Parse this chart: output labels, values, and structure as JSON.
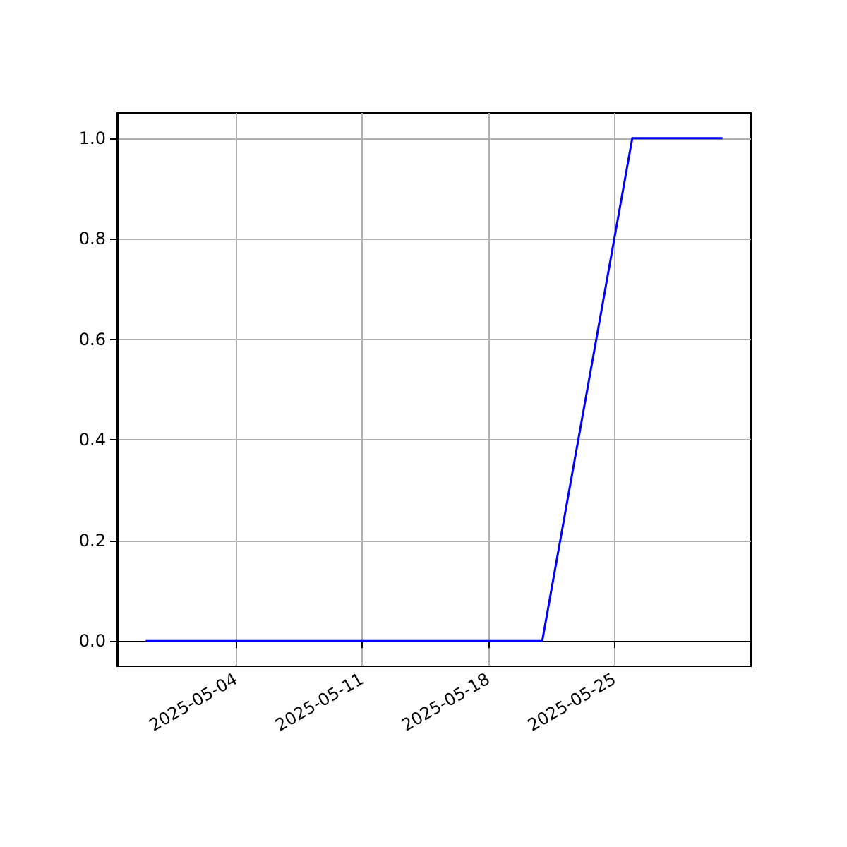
{
  "chart_data": {
    "type": "line",
    "x": [
      "2025-04-29",
      "2025-05-21",
      "2025-05-26",
      "2025-05-31"
    ],
    "series": [
      {
        "color": "#0000ff",
        "values": [
          0,
          0,
          1,
          1
        ]
      }
    ],
    "xlim": [
      "2025-04-27T10:00",
      "2025-06-01T14:00"
    ],
    "xticks": [
      "2025-05-04",
      "2025-05-11",
      "2025-05-18",
      "2025-05-25"
    ],
    "ylim": [
      -0.05,
      1.05
    ],
    "yticks": [
      {
        "value": 0,
        "label": "0.0"
      },
      {
        "value": 0.2,
        "label": "0.2"
      },
      {
        "value": 0.4,
        "label": "0.4"
      },
      {
        "value": 0.6,
        "label": "0.6"
      },
      {
        "value": 0.8,
        "label": "0.8"
      },
      {
        "value": 1,
        "label": "1.0"
      }
    ],
    "grid": true,
    "marker": "none",
    "line_style": "solid"
  }
}
